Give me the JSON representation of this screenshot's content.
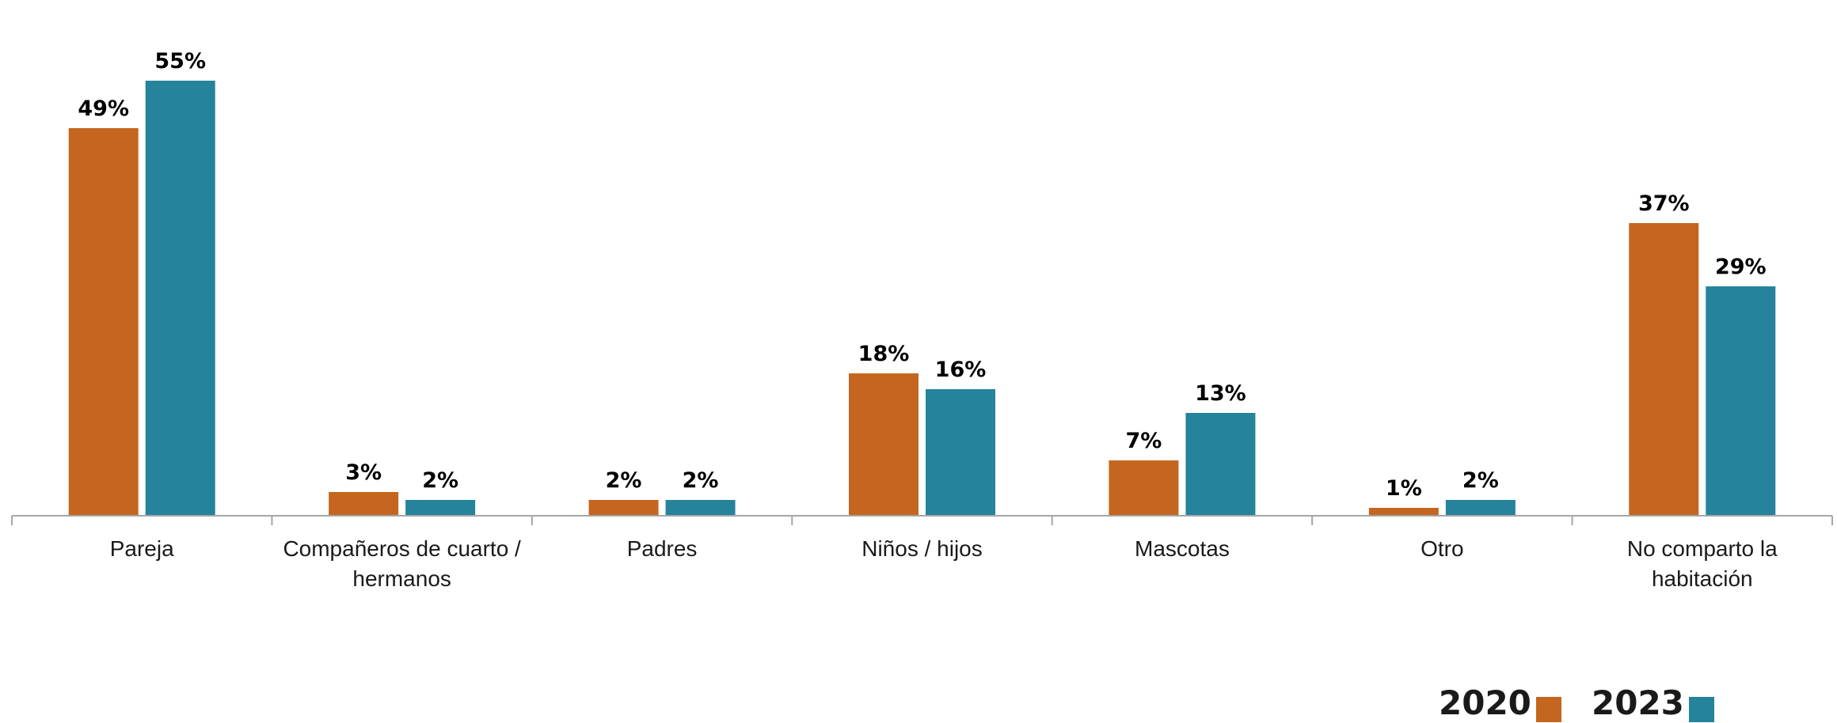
{
  "chart_data": {
    "type": "bar",
    "categories": [
      [
        "Pareja"
      ],
      [
        "Compañeros de cuarto /",
        "hermanos"
      ],
      [
        "Padres"
      ],
      [
        "Niños / hijos"
      ],
      [
        "Mascotas"
      ],
      [
        "Otro"
      ],
      [
        "No comparto la",
        "habitación"
      ]
    ],
    "series": [
      {
        "name": "2020",
        "color": "#c4661f",
        "values": [
          49,
          3,
          2,
          18,
          7,
          1,
          37
        ],
        "labels": [
          "49%",
          "3%",
          "2%",
          "18%",
          "7%",
          "1%",
          "37%"
        ]
      },
      {
        "name": "2023",
        "color": "#25839b",
        "values": [
          55,
          2,
          2,
          16,
          13,
          2,
          29
        ],
        "labels": [
          "55%",
          "2%",
          "2%",
          "16%",
          "13%",
          "2%",
          "29%"
        ]
      }
    ],
    "ylim": [
      0,
      60
    ],
    "grid": false,
    "legend_position": "bottom-right",
    "axis_color": "#a6a6a6"
  }
}
